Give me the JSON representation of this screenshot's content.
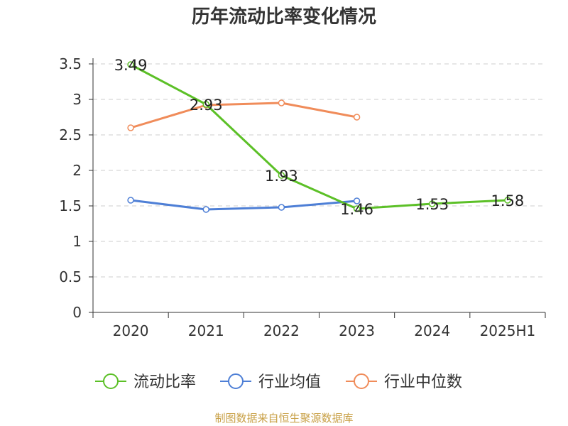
{
  "title": "历年流动比率变化情况",
  "source": "制图数据来自恒生聚源数据库",
  "colors": {
    "source_text": "#c8a046",
    "axis": "#333333",
    "grid": "#cccccc"
  },
  "chart_data": {
    "type": "line",
    "categories": [
      "2020",
      "2021",
      "2022",
      "2023",
      "2024",
      "2025H1"
    ],
    "ylim": [
      0,
      3.5
    ],
    "yticks": [
      "0",
      "0.5",
      "1",
      "1.5",
      "2",
      "2.5",
      "3",
      "3.5"
    ],
    "grid": "horizontal dashed",
    "legend_position": "bottom",
    "series": [
      {
        "name": "流动比率",
        "color": "#5cc027",
        "values": [
          3.49,
          2.93,
          1.93,
          1.46,
          1.53,
          1.58
        ],
        "labels": [
          "3.49",
          "2.93",
          "1.93",
          "1.46",
          "1.53",
          "1.58"
        ]
      },
      {
        "name": "行业均值",
        "color": "#4e7fd6",
        "values": [
          1.58,
          1.45,
          1.48,
          1.57,
          null,
          null
        ]
      },
      {
        "name": "行业中位数",
        "color": "#f08c5a",
        "values": [
          2.6,
          2.92,
          2.95,
          2.75,
          null,
          null
        ]
      }
    ]
  }
}
